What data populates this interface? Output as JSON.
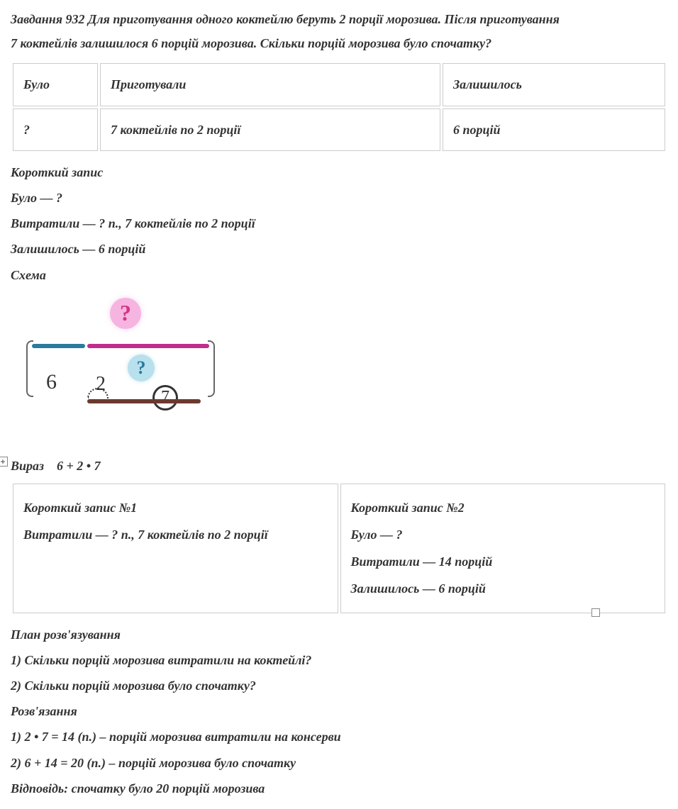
{
  "problem": {
    "title_prefix": "Завдання 932",
    "text_line1": "Завдання 932 Для приготування одного коктейлю беруть 2 порції морозива. Після приготування",
    "text_line2": "7 коктейлів залишилося 6 порцій морозива. Скільки порцій морозива було спочатку?"
  },
  "table1": {
    "headers": [
      "Було",
      "Приготували",
      "Залишилось"
    ],
    "row": [
      "?",
      "7 коктейлів по 2 порції",
      "6 порцій"
    ]
  },
  "short_notes": {
    "title": "Короткий запис",
    "line1": "Було — ?",
    "line2": "Витратили — ? п., 7 коктейлів по 2 порції",
    "line3": "Залишилось — 6 порцій"
  },
  "schema": {
    "title": "Схема",
    "q_top": "?",
    "q_mid": "?",
    "label_6": "6",
    "label_2": "2",
    "label_7": "7",
    "colors": {
      "blue_bar": "#2a7a9e",
      "magenta_bar": "#c02d8a",
      "brown_bar": "#6b3a2e",
      "pink_circle": "#f5b5e0",
      "pink_text": "#d63384",
      "cyan_circle": "#b8e0ed",
      "cyan_text": "#2a7a9e"
    }
  },
  "expression": {
    "label": "Вираз",
    "formula": "6 + 2 • 7",
    "expand_symbol": "+"
  },
  "table2": {
    "col1": {
      "title": "Короткий запис №1",
      "line1": "Витратили — ? п., 7 коктейлів по 2 порції"
    },
    "col2": {
      "title": "Короткий запис №2",
      "line1": "Було — ?",
      "line2": "Витратили — 14 порцій",
      "line3": "Залишилось — 6 порцій"
    }
  },
  "plan": {
    "title": "План розв'язування",
    "step1": "1) Скільки порцій морозива витратили на коктейлі?",
    "step2": "2) Скільки порцій морозива було спочатку?"
  },
  "solution": {
    "title": "Розв'язання",
    "step1": "1) 2 • 7 = 14 (п.) – порцій морозива витратили на консерви",
    "step2": "2) 6 + 14 = 20 (п.) – порцій морозива було спочатку"
  },
  "answer": "Відповідь: спочатку було 20 порцій морозива"
}
